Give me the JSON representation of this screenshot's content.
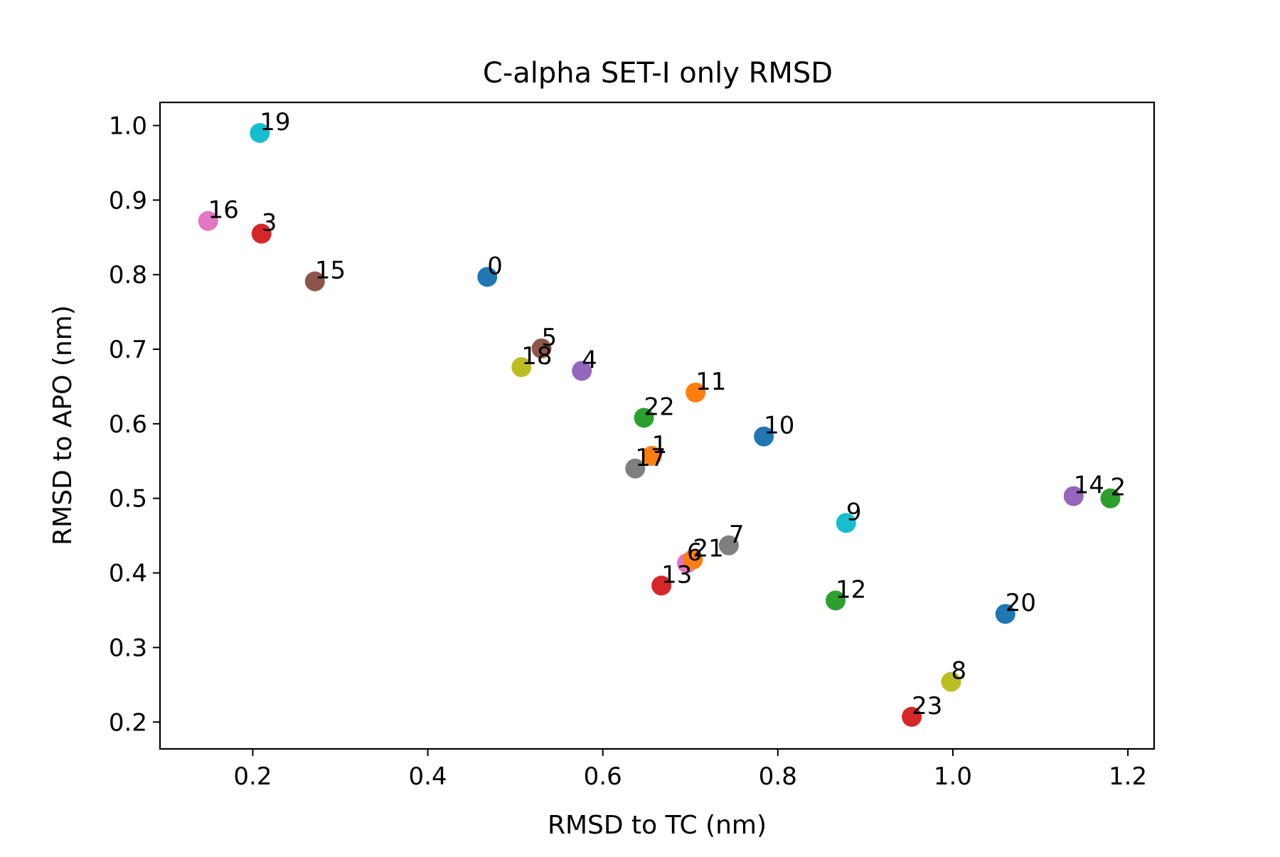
{
  "chart_data": {
    "type": "scatter",
    "title": "C-alpha SET-I only RMSD",
    "xlabel": "RMSD to TC (nm)",
    "ylabel": "RMSD to APO (nm)",
    "xlim": [
      0.094,
      1.23
    ],
    "ylim": [
      0.164,
      1.031
    ],
    "xticks": [
      "0.2",
      "0.4",
      "0.6",
      "0.8",
      "1.0",
      "1.2"
    ],
    "yticks": [
      "0.2",
      "0.3",
      "0.4",
      "0.5",
      "0.6",
      "0.7",
      "0.8",
      "0.9",
      "1.0"
    ],
    "grid": false,
    "legend": "none",
    "points": [
      {
        "label": "0",
        "x": 0.468,
        "y": 0.797,
        "color": "#1f77b4"
      },
      {
        "label": "1",
        "x": 0.656,
        "y": 0.557,
        "color": "#ff7f0e"
      },
      {
        "label": "2",
        "x": 1.18,
        "y": 0.5,
        "color": "#2ca02c"
      },
      {
        "label": "3",
        "x": 0.21,
        "y": 0.855,
        "color": "#d62728"
      },
      {
        "label": "4",
        "x": 0.576,
        "y": 0.671,
        "color": "#9467bd"
      },
      {
        "label": "5",
        "x": 0.53,
        "y": 0.701,
        "color": "#8c564b"
      },
      {
        "label": "6",
        "x": 0.696,
        "y": 0.413,
        "color": "#e377c2"
      },
      {
        "label": "7",
        "x": 0.744,
        "y": 0.437,
        "color": "#7f7f7f"
      },
      {
        "label": "8",
        "x": 0.998,
        "y": 0.254,
        "color": "#bcbd22"
      },
      {
        "label": "9",
        "x": 0.878,
        "y": 0.467,
        "color": "#17becf"
      },
      {
        "label": "10",
        "x": 0.784,
        "y": 0.583,
        "color": "#1f77b4"
      },
      {
        "label": "11",
        "x": 0.706,
        "y": 0.642,
        "color": "#ff7f0e"
      },
      {
        "label": "12",
        "x": 0.866,
        "y": 0.363,
        "color": "#2ca02c"
      },
      {
        "label": "13",
        "x": 0.667,
        "y": 0.383,
        "color": "#d62728"
      },
      {
        "label": "14",
        "x": 1.138,
        "y": 0.503,
        "color": "#9467bd"
      },
      {
        "label": "15",
        "x": 0.271,
        "y": 0.791,
        "color": "#8c564b"
      },
      {
        "label": "16",
        "x": 0.149,
        "y": 0.872,
        "color": "#e377c2"
      },
      {
        "label": "17",
        "x": 0.637,
        "y": 0.54,
        "color": "#7f7f7f"
      },
      {
        "label": "18",
        "x": 0.507,
        "y": 0.676,
        "color": "#bcbd22"
      },
      {
        "label": "19",
        "x": 0.208,
        "y": 0.99,
        "color": "#17becf"
      },
      {
        "label": "20",
        "x": 1.06,
        "y": 0.345,
        "color": "#1f77b4"
      },
      {
        "label": "21",
        "x": 0.703,
        "y": 0.418,
        "color": "#ff7f0e"
      },
      {
        "label": "22",
        "x": 0.647,
        "y": 0.608,
        "color": "#2ca02c"
      },
      {
        "label": "23",
        "x": 0.953,
        "y": 0.207,
        "color": "#d62728"
      }
    ]
  }
}
